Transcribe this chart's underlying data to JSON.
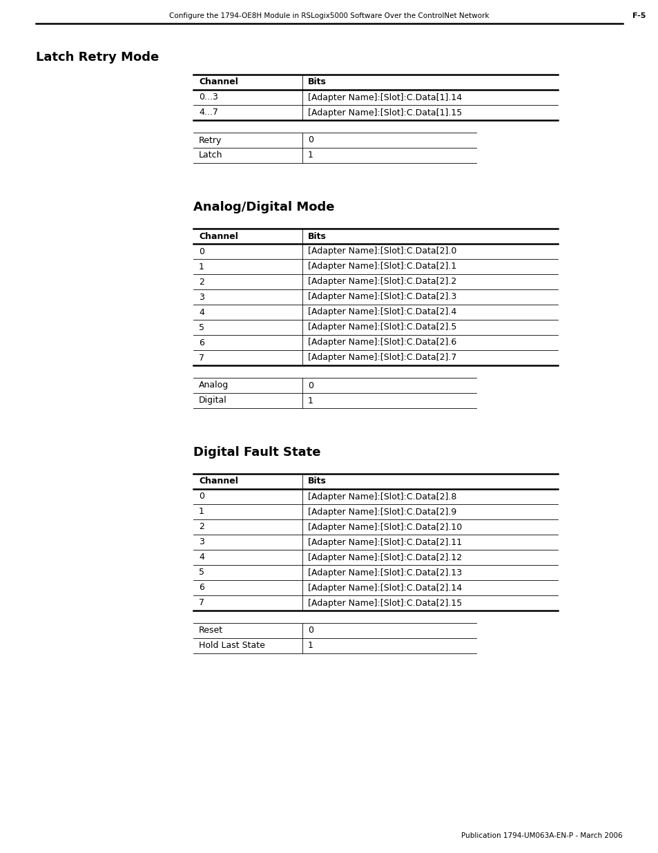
{
  "page_header_text": "Configure the 1794-OE8H Module in RSLogix5000 Software Over the ControlNet Network",
  "page_header_right": "F-5",
  "section1_title": "Latch Retry Mode",
  "section2_title": "Analog/Digital Mode",
  "section3_title": "Digital Fault State",
  "table1_header": [
    "Channel",
    "Bits"
  ],
  "table1_rows": [
    [
      "0...3",
      "[Adapter Name]:[Slot]:C.Data[1].14"
    ],
    [
      "4...7",
      "[Adapter Name]:[Slot]:C.Data[1].15"
    ]
  ],
  "legend1_rows": [
    [
      "Retry",
      "0"
    ],
    [
      "Latch",
      "1"
    ]
  ],
  "table2_header": [
    "Channel",
    "Bits"
  ],
  "table2_rows": [
    [
      "0",
      "[Adapter Name]:[Slot]:C.Data[2].0"
    ],
    [
      "1",
      "[Adapter Name]:[Slot]:C.Data[2].1"
    ],
    [
      "2",
      "[Adapter Name]:[Slot]:C.Data[2].2"
    ],
    [
      "3",
      "[Adapter Name]:[Slot]:C.Data[2].3"
    ],
    [
      "4",
      "[Adapter Name]:[Slot]:C.Data[2].4"
    ],
    [
      "5",
      "[Adapter Name]:[Slot]:C.Data[2].5"
    ],
    [
      "6",
      "[Adapter Name]:[Slot]:C.Data[2].6"
    ],
    [
      "7",
      "[Adapter Name]:[Slot]:C.Data[2].7"
    ]
  ],
  "legend2_rows": [
    [
      "Analog",
      "0"
    ],
    [
      "Digital",
      "1"
    ]
  ],
  "table3_header": [
    "Channel",
    "Bits"
  ],
  "table3_rows": [
    [
      "0",
      "[Adapter Name]:[Slot]:C.Data[2].8"
    ],
    [
      "1",
      "[Adapter Name]:[Slot]:C.Data[2].9"
    ],
    [
      "2",
      "[Adapter Name]:[Slot]:C.Data[2].10"
    ],
    [
      "3",
      "[Adapter Name]:[Slot]:C.Data[2].11"
    ],
    [
      "4",
      "[Adapter Name]:[Slot]:C.Data[2].12"
    ],
    [
      "5",
      "[Adapter Name]:[Slot]:C.Data[2].13"
    ],
    [
      "6",
      "[Adapter Name]:[Slot]:C.Data[2].14"
    ],
    [
      "7",
      "[Adapter Name]:[Slot]:C.Data[2].15"
    ]
  ],
  "legend3_rows": [
    [
      "Reset",
      "0"
    ],
    [
      "Hold Last State",
      "1"
    ]
  ],
  "footer_text": "Publication 1794-UM063A-EN-P - March 2006"
}
